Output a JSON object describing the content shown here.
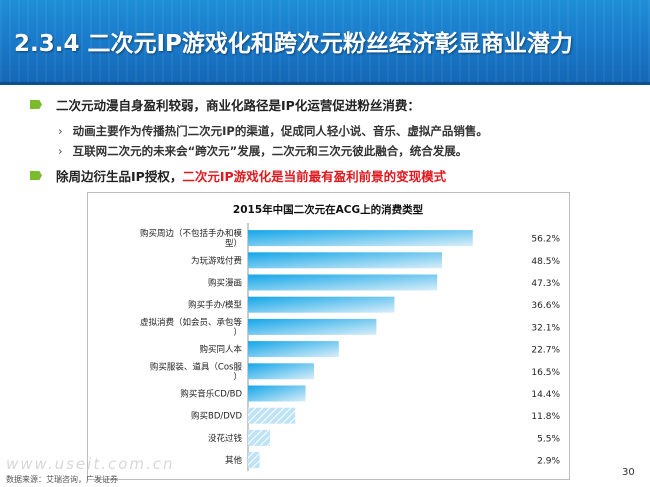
{
  "slide": {
    "title": "2.3.4 二次元IP游戏化和跨次元粉丝经济彰显商业潜力",
    "bullets": {
      "b1": "二次元动漫自身盈利较弱，商业化路径是IP化运营促进粉丝消费：",
      "sub1": "动画主要作为传播热门二次元IP的渠道，促成同人轻小说、音乐、虚拟产品销售。",
      "sub2": "互联网二次元的未来会“跨次元”发展，二次元和三次元彼此融合，统合发展。",
      "b2_prefix": "除周边衍生品IP授权，",
      "b2_highlight": "二次元IP游戏化是当前最有盈利前景的变现模式"
    },
    "watermark": "www.useit.com.cn",
    "source": "数据来源：艾瑞咨询，广发证券",
    "page_number": "30",
    "chevron": "›"
  },
  "chart_data": {
    "type": "bar",
    "orientation": "horizontal",
    "title": "2015年中国二次元在ACG上的消费类型",
    "categories": [
      "购买周边（不包括手办和模型）",
      "为玩游戏付费",
      "购买漫画",
      "购买手办/模型",
      "虚拟消费（如会员、承包等）",
      "购买同人本",
      "购买服装、道具（Cos服）",
      "购买音乐CD/BD",
      "购买BD/DVD",
      "没花过钱",
      "其他"
    ],
    "values": [
      56.2,
      48.5,
      47.3,
      36.6,
      32.1,
      22.7,
      16.5,
      14.4,
      11.8,
      5.5,
      2.9
    ],
    "value_labels": [
      "56.2%",
      "48.5%",
      "47.3%",
      "36.6%",
      "32.1%",
      "22.7%",
      "16.5%",
      "14.4%",
      "11.8%",
      "5.5%",
      "2.9%"
    ],
    "unit": "%",
    "grid": false,
    "legend": "none",
    "colors": {
      "gradient_top": "#14a6e8",
      "gradient_bottom": "#d9eef9"
    }
  },
  "colors": {
    "title_bar": "#1a7ccc",
    "bullet_marker": "#7dbb2e",
    "highlight": "#e0181e"
  }
}
